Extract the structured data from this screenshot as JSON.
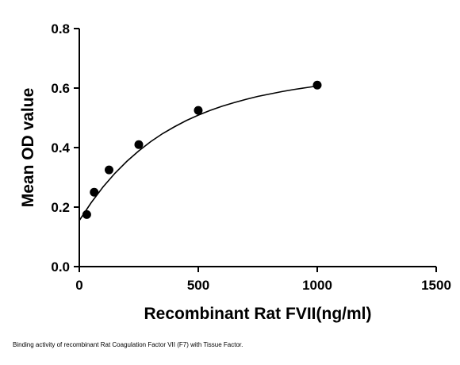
{
  "chart_data": {
    "type": "scatter",
    "xlabel": "Recombinant Rat FVII(ng/ml)",
    "ylabel": "Mean OD value",
    "xlim": [
      0,
      1500
    ],
    "ylim": [
      0,
      0.8
    ],
    "x_ticks": [
      0,
      500,
      1000,
      1500
    ],
    "y_ticks": [
      0.0,
      0.2,
      0.4,
      0.6,
      0.8
    ],
    "x_tick_labels": [
      "0",
      "500",
      "1000",
      "1500"
    ],
    "y_tick_labels": [
      "0.0",
      "0.2",
      "0.4",
      "0.6",
      "0.8"
    ],
    "grid": false,
    "legend": "none",
    "series": [
      {
        "x": [
          31.25,
          62.5,
          125,
          250,
          500,
          1000
        ],
        "y": [
          0.175,
          0.25,
          0.325,
          0.41,
          0.525,
          0.61
        ],
        "marker": "filled-circle",
        "color": "#000000"
      }
    ],
    "fit_curve": {
      "type": "saturation",
      "x_range": [
        0,
        1000
      ],
      "points": [
        [
          0,
          0.155
        ],
        [
          50,
          0.215
        ],
        [
          100,
          0.268
        ],
        [
          150,
          0.314
        ],
        [
          200,
          0.354
        ],
        [
          250,
          0.389
        ],
        [
          300,
          0.42
        ],
        [
          350,
          0.447
        ],
        [
          400,
          0.47
        ],
        [
          450,
          0.491
        ],
        [
          500,
          0.509
        ],
        [
          550,
          0.525
        ],
        [
          600,
          0.539
        ],
        [
          650,
          0.551
        ],
        [
          700,
          0.562
        ],
        [
          750,
          0.572
        ],
        [
          800,
          0.58
        ],
        [
          850,
          0.588
        ],
        [
          900,
          0.595
        ],
        [
          950,
          0.601
        ],
        [
          1000,
          0.607
        ]
      ],
      "color": "#000000"
    }
  },
  "caption": "Binding activity of recombinant Rat Coagulation Factor VII (F7) with Tissue Factor."
}
